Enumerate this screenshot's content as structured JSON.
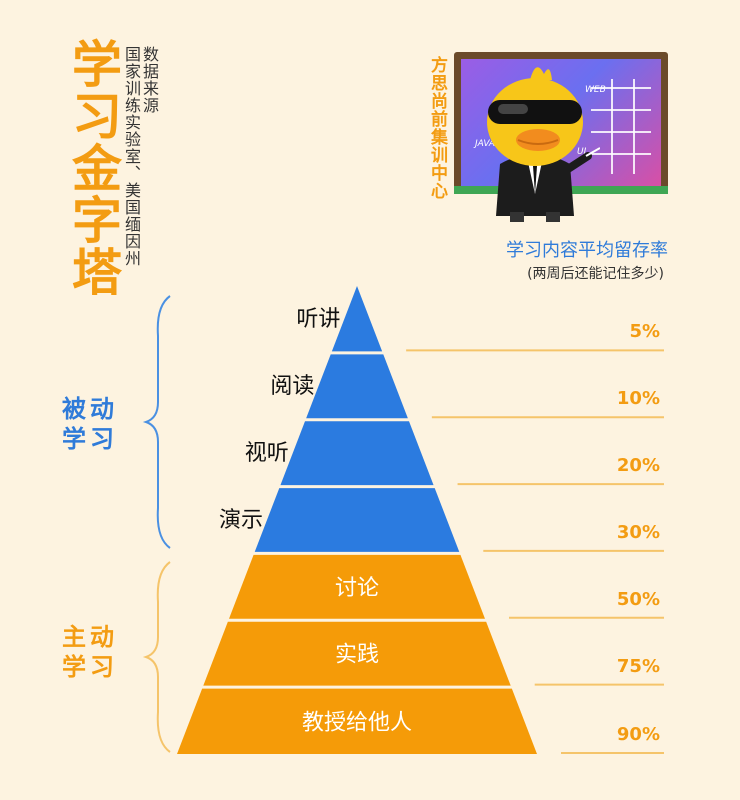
{
  "title": "学习金字塔",
  "source_lines": [
    "数据来源",
    "国家训练实验室、美国缅因州"
  ],
  "brand": "方思尚前集训中心",
  "board_texts": [
    "WEB",
    "JAVA",
    "UI"
  ],
  "retention": {
    "title": "学习内容平均留存率",
    "subtitle": "(两周后还能记住多少)"
  },
  "groups": {
    "passive": "被动学习",
    "active": "主动学习"
  },
  "colors": {
    "passive": "#2b7be0",
    "active": "#f59b08",
    "line": "#f5c46a",
    "brace_blue": "#4a90e2",
    "brace_orange": "#f5c46a"
  },
  "levels": [
    {
      "label": "听讲",
      "percent": "5%",
      "type": "passive"
    },
    {
      "label": "阅读",
      "percent": "10%",
      "type": "passive"
    },
    {
      "label": "视听",
      "percent": "20%",
      "type": "passive"
    },
    {
      "label": "演示",
      "percent": "30%",
      "type": "passive"
    },
    {
      "label": "讨论",
      "percent": "50%",
      "type": "active"
    },
    {
      "label": "实践",
      "percent": "75%",
      "type": "active"
    },
    {
      "label": "教授给他人",
      "percent": "90%",
      "type": "active"
    }
  ]
}
